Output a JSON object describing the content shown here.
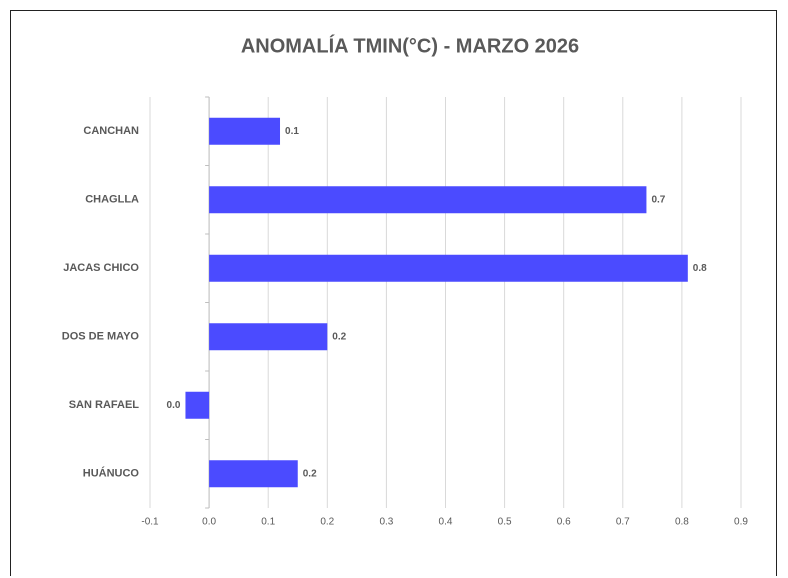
{
  "chart_data": {
    "type": "bar",
    "orientation": "horizontal",
    "title": "ANOMALÍA TMIN(°C) - MARZO 2026",
    "categories": [
      "CANCHAN",
      "CHAGLLA",
      "JACAS CHICO",
      "DOS DE MAYO",
      "SAN RAFAEL",
      "HUÁNUCO"
    ],
    "values": [
      0.12,
      0.74,
      0.81,
      0.2,
      -0.04,
      0.15
    ],
    "value_labels": [
      "0.1",
      "0.7",
      "0.8",
      "0.2",
      "0.0",
      "0.2"
    ],
    "color": "#4b4bff",
    "xlim": [
      -0.1,
      0.9
    ],
    "xticks": [
      -0.1,
      {
        "value": 0,
        "label": "0.0"
      },
      0.1,
      0.2,
      0.3,
      0.4,
      0.5,
      0.6,
      0.7,
      0.8,
      0.9
    ],
    "grid": true
  }
}
